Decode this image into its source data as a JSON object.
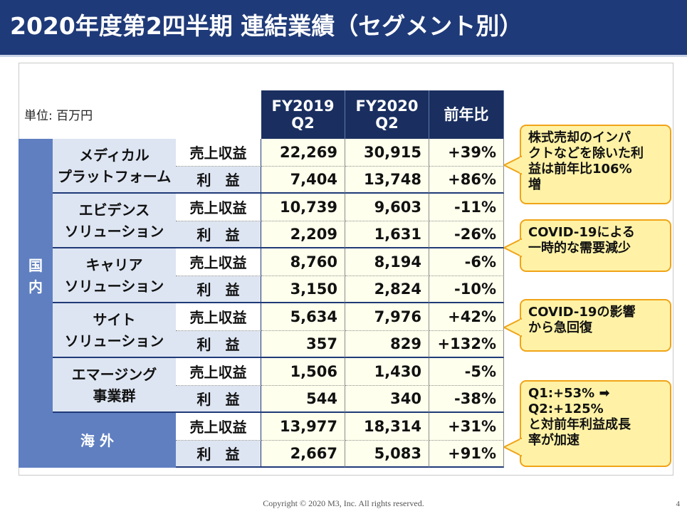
{
  "title": "2020年度第2四半期 連結業績（セグメント別）",
  "unit_label": "単位: 百万円",
  "columns": [
    {
      "line1": "FY2019",
      "line2": "Q2"
    },
    {
      "line1": "FY2020",
      "line2": "Q2"
    },
    {
      "line1": "前年比",
      "line2": ""
    }
  ],
  "groups": {
    "domestic": "国\n内",
    "overseas": "海 外"
  },
  "metrics": {
    "revenue": "売上収益",
    "profit": "利　益"
  },
  "segments": [
    {
      "name": "メディカル\nプラットフォーム",
      "revenue": [
        "22,269",
        "30,915",
        "+39%"
      ],
      "profit": [
        "7,404",
        "13,748",
        "+86%"
      ]
    },
    {
      "name": "エビデンス\nソリューション",
      "revenue": [
        "10,739",
        "9,603",
        "-11%"
      ],
      "profit": [
        "2,209",
        "1,631",
        "-26%"
      ]
    },
    {
      "name": "キャリア\nソリューション",
      "revenue": [
        "8,760",
        "8,194",
        "-6%"
      ],
      "profit": [
        "3,150",
        "2,824",
        "-10%"
      ]
    },
    {
      "name": "サイト\nソリューション",
      "revenue": [
        "5,634",
        "7,976",
        "+42%"
      ],
      "profit": [
        "357",
        "829",
        "+132%"
      ]
    },
    {
      "name": "エマージング\n事業群",
      "revenue": [
        "1,506",
        "1,430",
        "-5%"
      ],
      "profit": [
        "544",
        "340",
        "-38%"
      ]
    },
    {
      "name": "",
      "revenue": [
        "13,977",
        "18,314",
        "+31%"
      ],
      "profit": [
        "2,667",
        "5,083",
        "+91%"
      ]
    }
  ],
  "callouts": [
    {
      "text": "株式売却のインパ\nクトなどを除いた利\n益は前年比106%\n増"
    },
    {
      "text": "COVID-19による\n一時的な需要減少"
    },
    {
      "text": "COVID-19の影響\nから急回復"
    },
    {
      "text": "Q1:+53% ➡\nQ2:+125%\nと対前年利益成長\n率が加速"
    }
  ],
  "footer": "Copyright © 2020  M3, Inc.  All rights reserved.",
  "page_number": "4",
  "colors": {
    "title_bar": "#1f3a78",
    "header": "#1a2f60",
    "segment_bg": "#dde5f2",
    "group_bg": "#5f7fc0",
    "value_bg": "#ffffed",
    "callout_bg": "#fff2a6",
    "callout_border": "#f0a418"
  }
}
